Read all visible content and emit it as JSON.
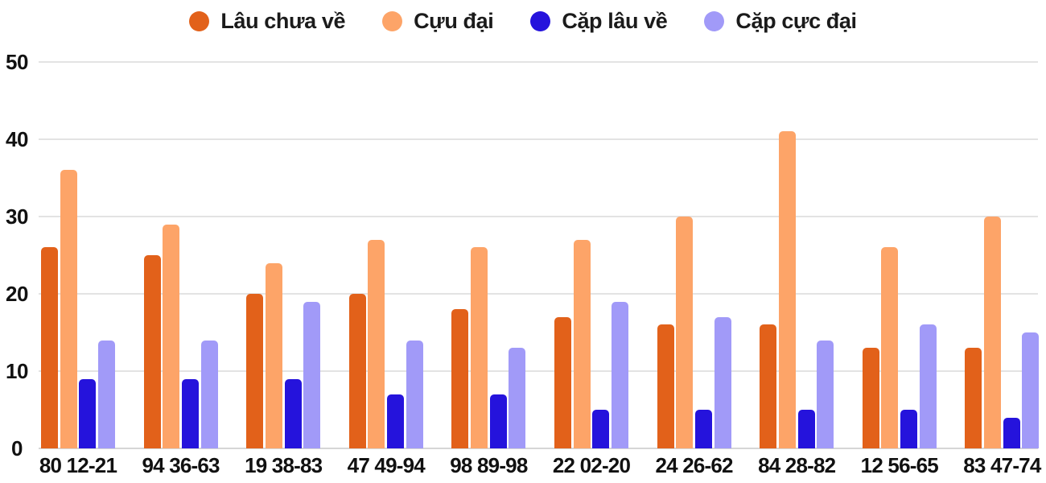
{
  "chart_data": {
    "type": "bar",
    "title": "",
    "xlabel": "",
    "ylabel": "",
    "ylim": [
      0,
      50
    ],
    "yticks": [
      0,
      10,
      20,
      30,
      40,
      50
    ],
    "grid": true,
    "legend_position": "top",
    "categories": [
      "80 12-21",
      "94 36-63",
      "19 38-83",
      "47 49-94",
      "98 89-98",
      "22 02-20",
      "24 26-62",
      "84 28-82",
      "12 56-65",
      "83 47-74"
    ],
    "series": [
      {
        "name": "Lâu chưa về",
        "color": "#e2611a",
        "values": [
          26,
          25,
          20,
          20,
          18,
          17,
          16,
          16,
          13,
          13
        ]
      },
      {
        "name": "Cựu đại",
        "color": "#fda468",
        "values": [
          36,
          29,
          24,
          27,
          26,
          27,
          30,
          41,
          26,
          30
        ]
      },
      {
        "name": "Cặp lâu về",
        "color": "#2513dc",
        "values": [
          9,
          9,
          9,
          7,
          7,
          5,
          5,
          5,
          5,
          4
        ]
      },
      {
        "name": "Cặp cực đại",
        "color": "#a19af8",
        "values": [
          14,
          14,
          19,
          14,
          13,
          19,
          17,
          14,
          16,
          15
        ]
      }
    ],
    "colors": {
      "text": "#111111",
      "legend_text": "#1b1b1b",
      "gridline": "#e3e3e3",
      "baseline": "#d6d6d6",
      "background": "#ffffff"
    }
  }
}
